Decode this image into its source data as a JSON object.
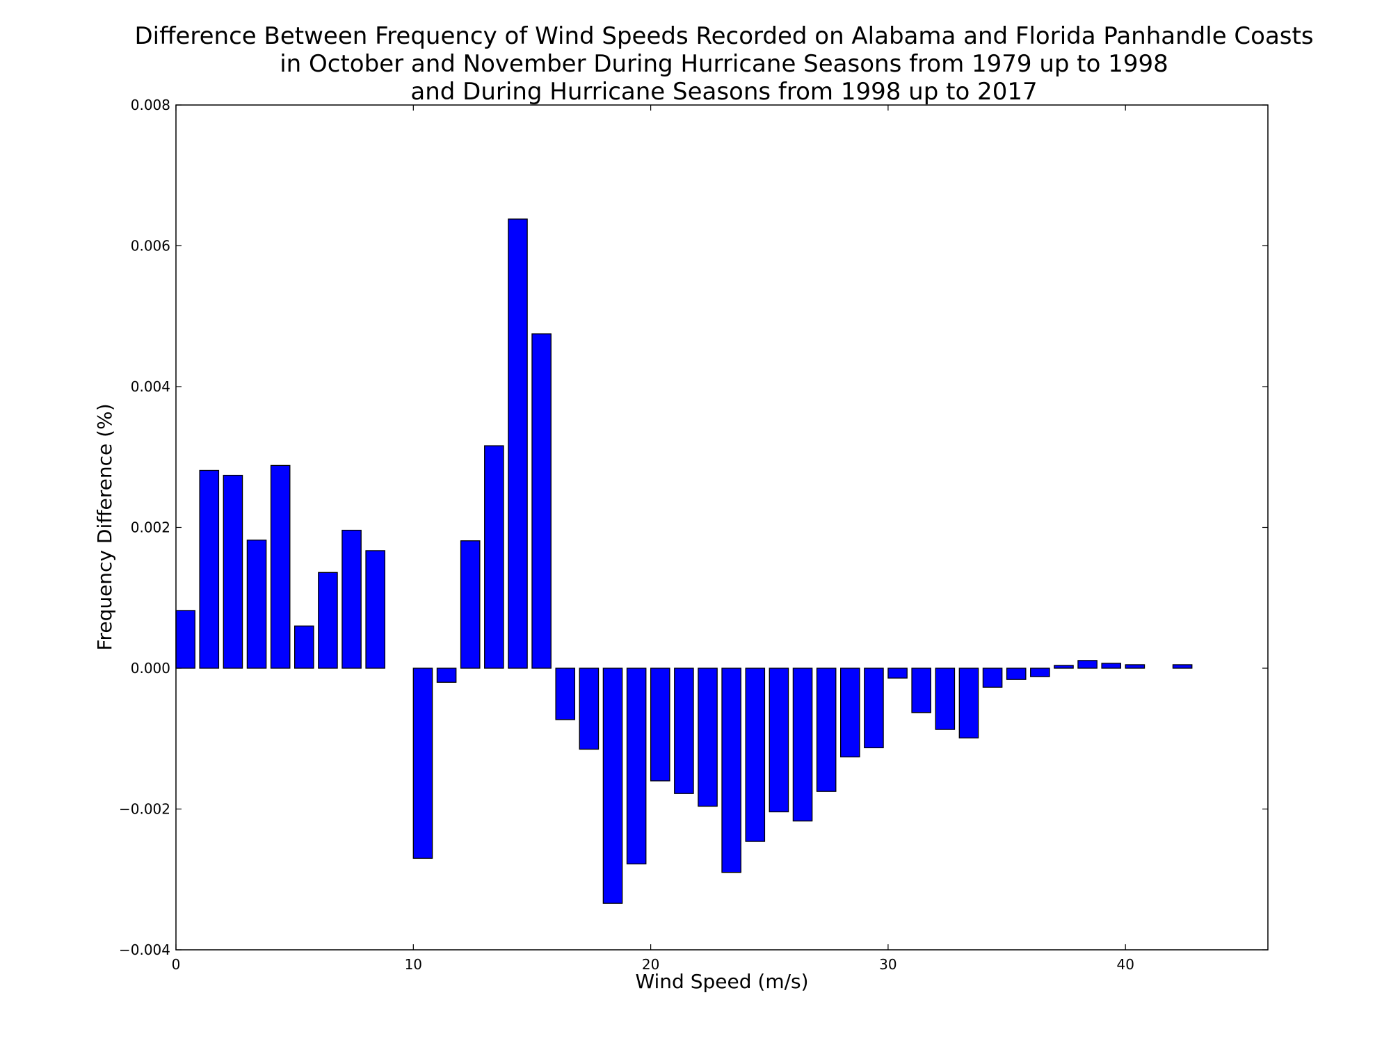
{
  "chart_data": {
    "type": "bar",
    "title_lines": [
      "Difference Between Frequency of Wind Speeds Recorded on Alabama and Florida Panhandle Coasts",
      "in October and November During Hurricane Seasons from 1979 up to 1998",
      "and During Hurricane Seasons from 1998 up to 2017"
    ],
    "xlabel": "Wind Speed (m/s)",
    "ylabel": "Frequency Difference (%)",
    "xlim": [
      0,
      46
    ],
    "ylim": [
      -0.004,
      0.008
    ],
    "x_ticks": [
      0,
      10,
      20,
      30,
      40
    ],
    "x_tick_labels": [
      "0",
      "10",
      "20",
      "30",
      "40"
    ],
    "y_ticks": [
      -0.004,
      -0.002,
      0.0,
      0.002,
      0.004,
      0.006,
      0.008
    ],
    "y_tick_labels": [
      "−0.004",
      "−0.002",
      "0.000",
      "0.002",
      "0.004",
      "0.006",
      "0.008"
    ],
    "bar_width": 0.8,
    "bar_color": "#0000ff",
    "edge_color": "#000000",
    "grid": false,
    "x": [
      0,
      1,
      2,
      3,
      4,
      5,
      6,
      7,
      8,
      9,
      10,
      11,
      12,
      13,
      14,
      15,
      16,
      17,
      18,
      19,
      20,
      21,
      22,
      23,
      24,
      25,
      26,
      27,
      28,
      29,
      30,
      31,
      32,
      33,
      34,
      35,
      36,
      37,
      38,
      39,
      40,
      41,
      42,
      43,
      44
    ],
    "values": [
      0.00082,
      0.00281,
      0.00274,
      0.00182,
      0.00288,
      0.0006,
      0.00136,
      0.00196,
      0.00167,
      0.0,
      -0.0027,
      -0.0002,
      0.00181,
      0.00316,
      0.00638,
      0.00475,
      -0.00073,
      -0.00115,
      -0.00334,
      -0.00278,
      -0.0016,
      -0.00178,
      -0.00196,
      -0.0029,
      -0.00246,
      -0.00204,
      -0.00217,
      -0.00175,
      -0.00126,
      -0.00113,
      -0.00014,
      -0.00063,
      -0.00087,
      -0.00099,
      -0.00027,
      -0.00016,
      -0.00012,
      4e-05,
      0.00011,
      7e-05,
      5e-05,
      0.0,
      5e-05,
      0.0,
      0.0
    ]
  }
}
